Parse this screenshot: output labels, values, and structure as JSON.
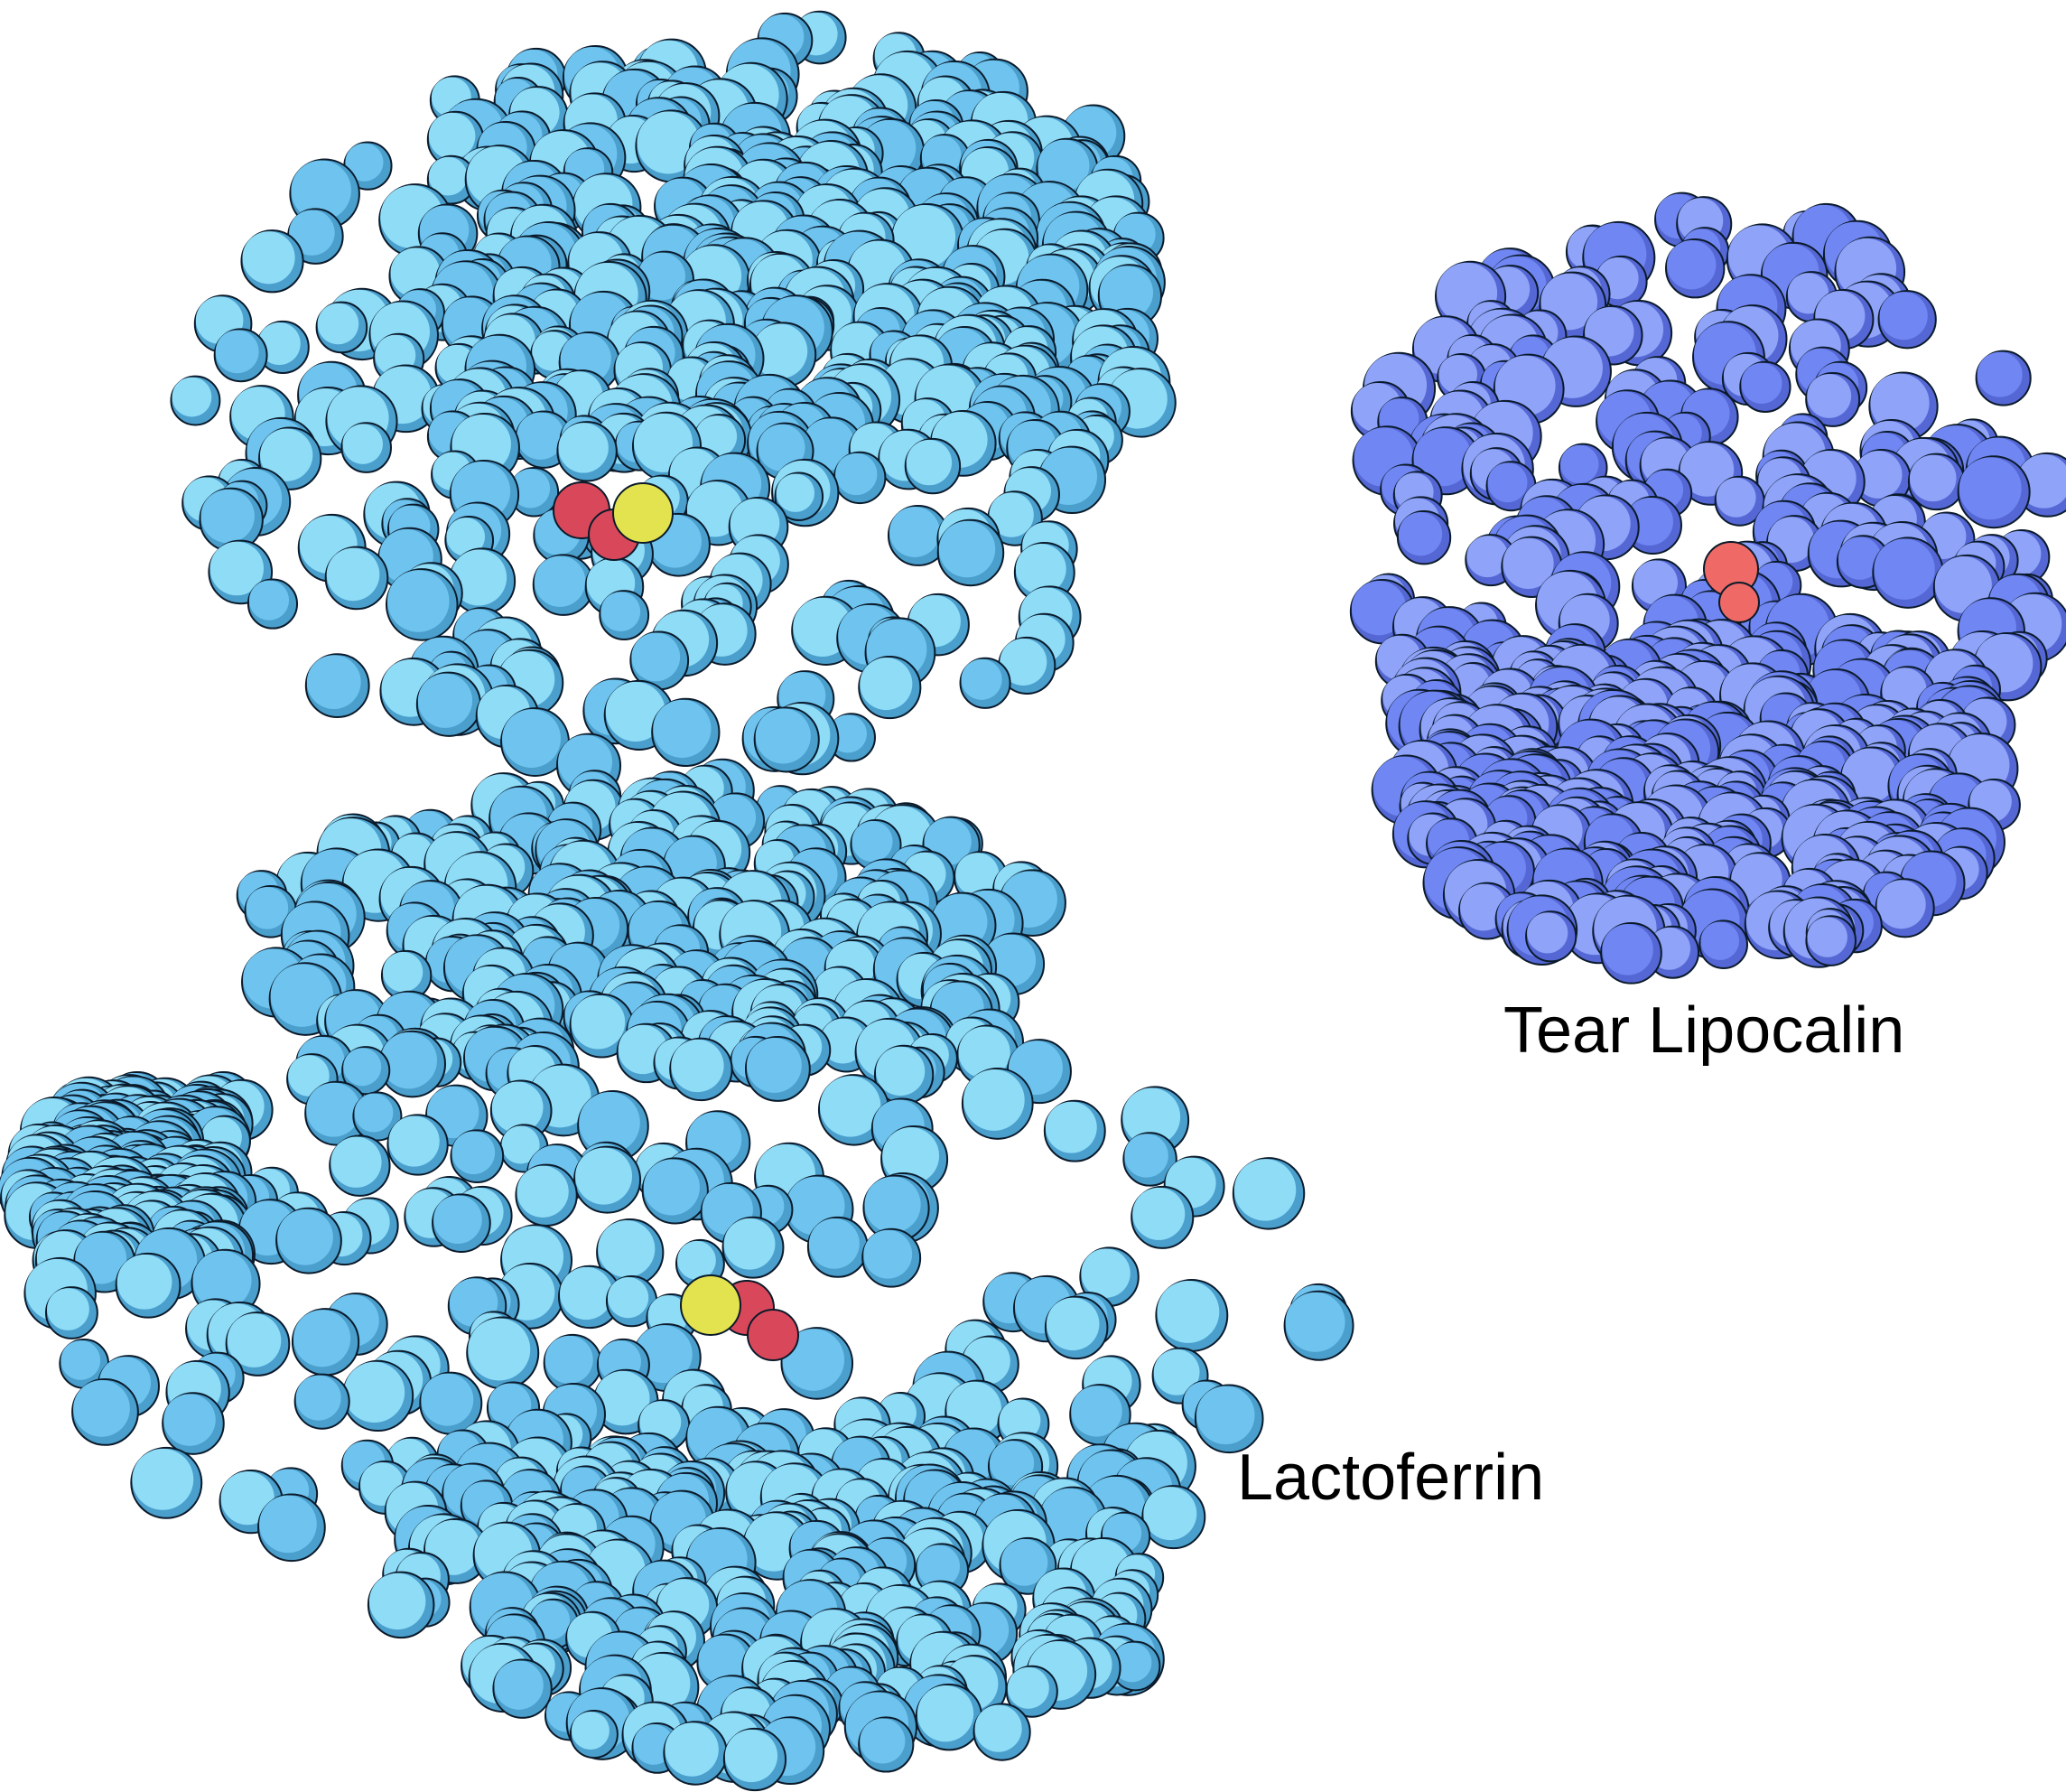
{
  "labels": {
    "lactoferrin": "Lactoferrin",
    "lipocalin": "Tear Lipocalin"
  },
  "colors": {
    "background": "#ffffff",
    "lactoferrin_light": "#8fdcf7",
    "lactoferrin_mid": "#6fc4ef",
    "lactoferrin_shadow": "#4a9fcd",
    "lipocalin_light": "#8fa3f8",
    "lipocalin_mid": "#7086f2",
    "lipocalin_shadow": "#5467d4",
    "outline": "#0b1a2a",
    "iron_site_oxygen": "#d9485a",
    "iron_site_metal": "#e3e24f",
    "lipocalin_ligand": "#ef6a66"
  },
  "molecules": [
    {
      "name": "lactoferrin",
      "style": "space-filling",
      "color": "light-blue"
    },
    {
      "name": "tear-lipocalin",
      "style": "space-filling",
      "color": "periwinkle"
    }
  ]
}
